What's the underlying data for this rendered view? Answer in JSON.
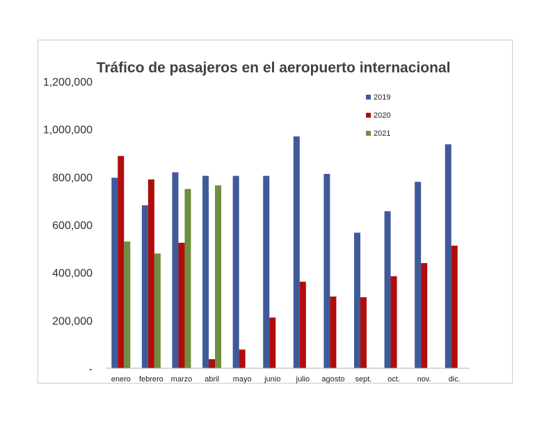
{
  "chart_data": {
    "type": "bar",
    "title": "Tráfico de pasajeros en el aeropuerto internacional",
    "xlabel": "",
    "ylabel": "",
    "categories": [
      "enero",
      "febrero",
      "marzo",
      "abril",
      "mayo",
      "junio",
      "julio",
      "agosto",
      "sept.",
      "oct.",
      "nov.",
      "dic."
    ],
    "series": [
      {
        "name": "2019",
        "color": "#3f5a99",
        "values": [
          797000,
          682000,
          820000,
          805000,
          805000,
          805000,
          970000,
          813000,
          567000,
          657000,
          780000,
          937000
        ]
      },
      {
        "name": "2020",
        "color": "#b00d0d",
        "values": [
          888000,
          790000,
          525000,
          38000,
          78000,
          212000,
          362000,
          300000,
          297000,
          385000,
          440000,
          513000
        ]
      },
      {
        "name": "2021",
        "color": "#6f8e3f",
        "values": [
          530000,
          480000,
          750000,
          765000,
          null,
          null,
          null,
          null,
          null,
          null,
          null,
          null
        ]
      }
    ],
    "ylim": [
      0,
      1200000
    ],
    "y_ticks": [
      0,
      200000,
      400000,
      600000,
      800000,
      1000000,
      1200000
    ],
    "y_tick_labels": [
      "-",
      "200,000",
      "400,000",
      "600,000",
      "800,000",
      "1,000,000",
      "1,200,000"
    ],
    "grid": false,
    "legend_position": "top-right"
  }
}
